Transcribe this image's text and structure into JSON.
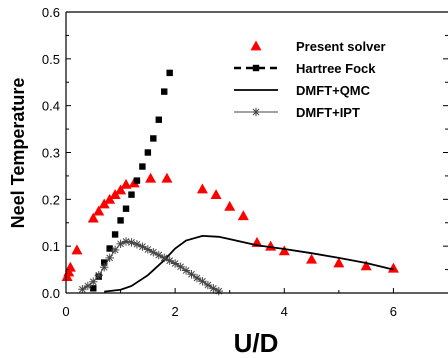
{
  "chart_data": {
    "type": "scatter",
    "xlabel": "U/D",
    "ylabel": "Neel Temperature",
    "xlim": [
      0,
      7
    ],
    "ylim": [
      0,
      0.6
    ],
    "x_ticks": [
      "0",
      "2",
      "4",
      "6"
    ],
    "y_ticks": [
      "0.0",
      "0.1",
      "0.2",
      "0.3",
      "0.4",
      "0.5",
      "0.6"
    ],
    "x_tick_values": [
      0,
      2,
      4,
      6
    ],
    "y_tick_values": [
      0,
      0.1,
      0.2,
      0.3,
      0.4,
      0.5,
      0.6
    ],
    "legend_position": "top-right",
    "series": [
      {
        "name": "Present solver",
        "style": "triangle",
        "color": "#ff0000",
        "points": [
          [
            0.02,
            0.035
          ],
          [
            0.05,
            0.045
          ],
          [
            0.08,
            0.055
          ],
          [
            0.2,
            0.092
          ],
          [
            0.5,
            0.16
          ],
          [
            0.6,
            0.175
          ],
          [
            0.7,
            0.19
          ],
          [
            0.8,
            0.2
          ],
          [
            0.9,
            0.21
          ],
          [
            1.0,
            0.22
          ],
          [
            1.1,
            0.232
          ],
          [
            1.25,
            0.235
          ],
          [
            1.55,
            0.245
          ],
          [
            1.85,
            0.245
          ],
          [
            2.5,
            0.222
          ],
          [
            2.75,
            0.21
          ],
          [
            3.0,
            0.185
          ],
          [
            3.25,
            0.165
          ],
          [
            3.5,
            0.108
          ],
          [
            3.75,
            0.1
          ],
          [
            4.0,
            0.09
          ],
          [
            4.5,
            0.072
          ],
          [
            5.0,
            0.064
          ],
          [
            5.5,
            0.058
          ],
          [
            6.0,
            0.053
          ]
        ]
      },
      {
        "name": "Hartree Fock",
        "style": "square-dash",
        "color": "#000000",
        "points": [
          [
            0.5,
            0.01
          ],
          [
            0.6,
            0.035
          ],
          [
            0.7,
            0.065
          ],
          [
            0.8,
            0.095
          ],
          [
            0.9,
            0.125
          ],
          [
            1.0,
            0.155
          ],
          [
            1.1,
            0.18
          ],
          [
            1.2,
            0.21
          ],
          [
            1.3,
            0.24
          ],
          [
            1.4,
            0.27
          ],
          [
            1.5,
            0.3
          ],
          [
            1.6,
            0.33
          ],
          [
            1.7,
            0.37
          ],
          [
            1.8,
            0.43
          ],
          [
            1.9,
            0.47
          ]
        ]
      },
      {
        "name": "DMFT+QMC",
        "style": "line",
        "color": "#000000",
        "points": [
          [
            0.7,
            0.003
          ],
          [
            1.0,
            0.007
          ],
          [
            1.2,
            0.015
          ],
          [
            1.5,
            0.038
          ],
          [
            1.8,
            0.07
          ],
          [
            2.0,
            0.095
          ],
          [
            2.2,
            0.112
          ],
          [
            2.5,
            0.122
          ],
          [
            2.8,
            0.12
          ],
          [
            3.0,
            0.115
          ],
          [
            3.5,
            0.102
          ],
          [
            4.0,
            0.094
          ],
          [
            4.5,
            0.085
          ],
          [
            5.0,
            0.075
          ],
          [
            5.5,
            0.064
          ],
          [
            6.0,
            0.05
          ]
        ]
      },
      {
        "name": "DMFT+IPT",
        "style": "star-line",
        "color": "#444444",
        "points": [
          [
            0.3,
            0.008
          ],
          [
            0.4,
            0.015
          ],
          [
            0.5,
            0.024
          ],
          [
            0.6,
            0.038
          ],
          [
            0.7,
            0.055
          ],
          [
            0.8,
            0.075
          ],
          [
            0.9,
            0.092
          ],
          [
            1.0,
            0.105
          ],
          [
            1.1,
            0.11
          ],
          [
            1.2,
            0.108
          ],
          [
            1.3,
            0.104
          ],
          [
            1.4,
            0.099
          ],
          [
            1.5,
            0.093
          ],
          [
            1.6,
            0.087
          ],
          [
            1.7,
            0.081
          ],
          [
            1.8,
            0.075
          ],
          [
            1.9,
            0.069
          ],
          [
            2.0,
            0.063
          ],
          [
            2.1,
            0.056
          ],
          [
            2.2,
            0.048
          ],
          [
            2.3,
            0.04
          ],
          [
            2.4,
            0.032
          ],
          [
            2.5,
            0.025
          ],
          [
            2.6,
            0.017
          ],
          [
            2.7,
            0.01
          ],
          [
            2.8,
            0.004
          ]
        ]
      }
    ]
  }
}
